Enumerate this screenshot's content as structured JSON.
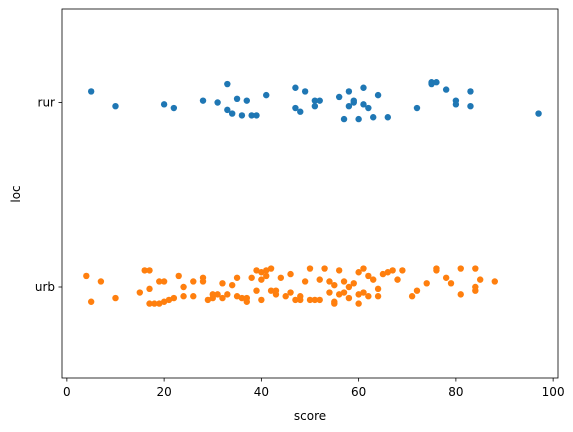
{
  "chart_data": {
    "type": "scatter",
    "xlabel": "score",
    "ylabel": "loc",
    "xlim": [
      -1,
      101
    ],
    "xticks": [
      0,
      20,
      40,
      60,
      80,
      100
    ],
    "categories": [
      "rur",
      "urb"
    ],
    "grid": false,
    "series": [
      {
        "category": "rur",
        "color": "#1f77b4",
        "points": [
          {
            "x": 5,
            "jitter": -0.06
          },
          {
            "x": 10,
            "jitter": 0.02
          },
          {
            "x": 20,
            "jitter": 0.01
          },
          {
            "x": 22,
            "jitter": 0.03
          },
          {
            "x": 28,
            "jitter": -0.01
          },
          {
            "x": 31,
            "jitter": 0.0
          },
          {
            "x": 33,
            "jitter": -0.1
          },
          {
            "x": 33,
            "jitter": 0.04
          },
          {
            "x": 34,
            "jitter": 0.06
          },
          {
            "x": 35,
            "jitter": -0.02
          },
          {
            "x": 36,
            "jitter": 0.07
          },
          {
            "x": 37,
            "jitter": -0.01
          },
          {
            "x": 38,
            "jitter": 0.07
          },
          {
            "x": 39,
            "jitter": 0.07
          },
          {
            "x": 41,
            "jitter": -0.04
          },
          {
            "x": 47,
            "jitter": -0.08
          },
          {
            "x": 47,
            "jitter": 0.03
          },
          {
            "x": 48,
            "jitter": 0.05
          },
          {
            "x": 49,
            "jitter": -0.06
          },
          {
            "x": 51,
            "jitter": -0.01
          },
          {
            "x": 51,
            "jitter": 0.02
          },
          {
            "x": 52,
            "jitter": -0.01
          },
          {
            "x": 56,
            "jitter": -0.03
          },
          {
            "x": 57,
            "jitter": 0.09
          },
          {
            "x": 58,
            "jitter": -0.06
          },
          {
            "x": 58,
            "jitter": 0.02
          },
          {
            "x": 59,
            "jitter": 0.0
          },
          {
            "x": 59,
            "jitter": -0.01
          },
          {
            "x": 60,
            "jitter": 0.09
          },
          {
            "x": 61,
            "jitter": -0.08
          },
          {
            "x": 61,
            "jitter": 0.01
          },
          {
            "x": 62,
            "jitter": 0.03
          },
          {
            "x": 63,
            "jitter": 0.08
          },
          {
            "x": 64,
            "jitter": -0.04
          },
          {
            "x": 66,
            "jitter": 0.08
          },
          {
            "x": 72,
            "jitter": 0.03
          },
          {
            "x": 75,
            "jitter": -0.11
          },
          {
            "x": 75,
            "jitter": -0.1
          },
          {
            "x": 76,
            "jitter": -0.11
          },
          {
            "x": 78,
            "jitter": -0.07
          },
          {
            "x": 80,
            "jitter": -0.01
          },
          {
            "x": 80,
            "jitter": 0.01
          },
          {
            "x": 83,
            "jitter": -0.06
          },
          {
            "x": 83,
            "jitter": 0.02
          },
          {
            "x": 97,
            "jitter": 0.06
          }
        ]
      },
      {
        "category": "urb",
        "color": "#ff7f0e",
        "points": [
          {
            "x": 4,
            "jitter": -0.06
          },
          {
            "x": 5,
            "jitter": 0.08
          },
          {
            "x": 7,
            "jitter": -0.03
          },
          {
            "x": 10,
            "jitter": 0.06
          },
          {
            "x": 15,
            "jitter": 0.03
          },
          {
            "x": 16,
            "jitter": -0.09
          },
          {
            "x": 17,
            "jitter": -0.09
          },
          {
            "x": 17,
            "jitter": 0.01
          },
          {
            "x": 17,
            "jitter": 0.09
          },
          {
            "x": 18,
            "jitter": 0.09
          },
          {
            "x": 19,
            "jitter": -0.03
          },
          {
            "x": 19,
            "jitter": 0.09
          },
          {
            "x": 20,
            "jitter": -0.03
          },
          {
            "x": 20,
            "jitter": 0.08
          },
          {
            "x": 21,
            "jitter": 0.07
          },
          {
            "x": 22,
            "jitter": 0.06
          },
          {
            "x": 23,
            "jitter": -0.06
          },
          {
            "x": 24,
            "jitter": 0.0
          },
          {
            "x": 24,
            "jitter": 0.05
          },
          {
            "x": 26,
            "jitter": -0.03
          },
          {
            "x": 26,
            "jitter": 0.05
          },
          {
            "x": 28,
            "jitter": -0.05
          },
          {
            "x": 28,
            "jitter": -0.03
          },
          {
            "x": 29,
            "jitter": 0.07
          },
          {
            "x": 30,
            "jitter": 0.04
          },
          {
            "x": 30,
            "jitter": 0.06
          },
          {
            "x": 31,
            "jitter": 0.04
          },
          {
            "x": 32,
            "jitter": 0.06
          },
          {
            "x": 32,
            "jitter": -0.02
          },
          {
            "x": 33,
            "jitter": 0.04
          },
          {
            "x": 34,
            "jitter": -0.01
          },
          {
            "x": 35,
            "jitter": 0.05
          },
          {
            "x": 36,
            "jitter": 0.06
          },
          {
            "x": 35,
            "jitter": -0.05
          },
          {
            "x": 37,
            "jitter": 0.06
          },
          {
            "x": 37,
            "jitter": 0.08
          },
          {
            "x": 38,
            "jitter": -0.05
          },
          {
            "x": 39,
            "jitter": -0.09
          },
          {
            "x": 39,
            "jitter": 0.02
          },
          {
            "x": 40,
            "jitter": -0.08
          },
          {
            "x": 40,
            "jitter": 0.07
          },
          {
            "x": 40,
            "jitter": -0.04
          },
          {
            "x": 41,
            "jitter": -0.09
          },
          {
            "x": 41,
            "jitter": -0.06
          },
          {
            "x": 42,
            "jitter": -0.1
          },
          {
            "x": 42,
            "jitter": 0.02
          },
          {
            "x": 43,
            "jitter": 0.04
          },
          {
            "x": 43,
            "jitter": 0.02
          },
          {
            "x": 44,
            "jitter": -0.05
          },
          {
            "x": 45,
            "jitter": 0.05
          },
          {
            "x": 46,
            "jitter": -0.07
          },
          {
            "x": 46,
            "jitter": 0.03
          },
          {
            "x": 47,
            "jitter": 0.07
          },
          {
            "x": 48,
            "jitter": 0.05
          },
          {
            "x": 48,
            "jitter": 0.07
          },
          {
            "x": 49,
            "jitter": -0.03
          },
          {
            "x": 50,
            "jitter": -0.1
          },
          {
            "x": 50,
            "jitter": 0.07
          },
          {
            "x": 51,
            "jitter": 0.07
          },
          {
            "x": 52,
            "jitter": -0.04
          },
          {
            "x": 52,
            "jitter": 0.07
          },
          {
            "x": 53,
            "jitter": -0.1
          },
          {
            "x": 54,
            "jitter": -0.03
          },
          {
            "x": 54,
            "jitter": 0.03
          },
          {
            "x": 55,
            "jitter": 0.08
          },
          {
            "x": 55,
            "jitter": -0.01
          },
          {
            "x": 55,
            "jitter": 0.09
          },
          {
            "x": 56,
            "jitter": 0.04
          },
          {
            "x": 56,
            "jitter": -0.09
          },
          {
            "x": 57,
            "jitter": -0.03
          },
          {
            "x": 57,
            "jitter": 0.03
          },
          {
            "x": 58,
            "jitter": 0.0
          },
          {
            "x": 58,
            "jitter": 0.06
          },
          {
            "x": 59,
            "jitter": -0.02
          },
          {
            "x": 60,
            "jitter": 0.04
          },
          {
            "x": 60,
            "jitter": -0.08
          },
          {
            "x": 60,
            "jitter": 0.09
          },
          {
            "x": 61,
            "jitter": -0.1
          },
          {
            "x": 61,
            "jitter": 0.03
          },
          {
            "x": 62,
            "jitter": -0.06
          },
          {
            "x": 62,
            "jitter": 0.05
          },
          {
            "x": 63,
            "jitter": -0.04
          },
          {
            "x": 64,
            "jitter": 0.01
          },
          {
            "x": 64,
            "jitter": 0.05
          },
          {
            "x": 65,
            "jitter": -0.07
          },
          {
            "x": 66,
            "jitter": -0.08
          },
          {
            "x": 67,
            "jitter": -0.09
          },
          {
            "x": 68,
            "jitter": -0.04
          },
          {
            "x": 69,
            "jitter": -0.09
          },
          {
            "x": 71,
            "jitter": 0.05
          },
          {
            "x": 72,
            "jitter": 0.02
          },
          {
            "x": 74,
            "jitter": -0.02
          },
          {
            "x": 76,
            "jitter": -0.09
          },
          {
            "x": 76,
            "jitter": -0.1
          },
          {
            "x": 78,
            "jitter": -0.05
          },
          {
            "x": 79,
            "jitter": -0.02
          },
          {
            "x": 81,
            "jitter": -0.1
          },
          {
            "x": 81,
            "jitter": 0.04
          },
          {
            "x": 84,
            "jitter": -0.1
          },
          {
            "x": 84,
            "jitter": 0.0
          },
          {
            "x": 84,
            "jitter": 0.02
          },
          {
            "x": 85,
            "jitter": -0.04
          },
          {
            "x": 88,
            "jitter": -0.03
          }
        ]
      }
    ]
  }
}
